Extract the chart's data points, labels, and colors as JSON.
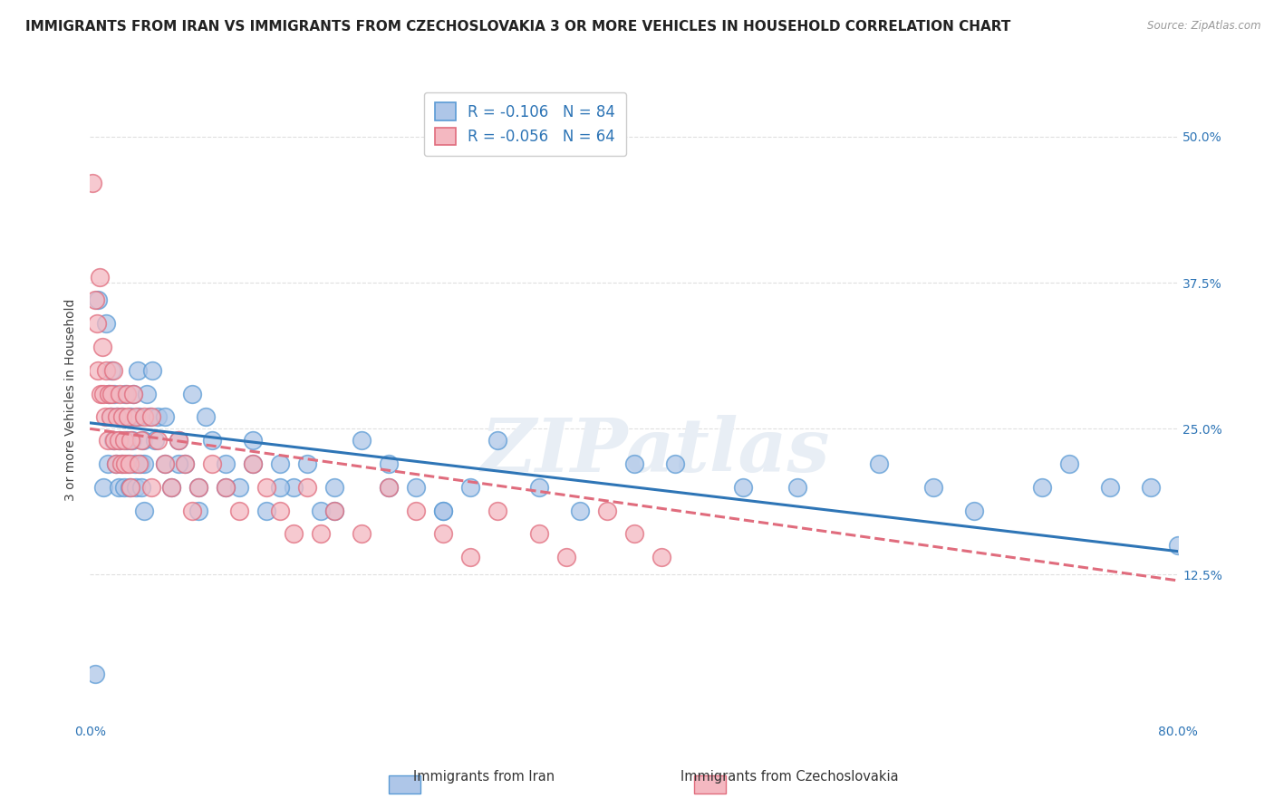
{
  "title": "IMMIGRANTS FROM IRAN VS IMMIGRANTS FROM CZECHOSLOVAKIA 3 OR MORE VEHICLES IN HOUSEHOLD CORRELATION CHART",
  "source": "Source: ZipAtlas.com",
  "ylabel": "3 or more Vehicles in Household",
  "xlim": [
    0.0,
    80.0
  ],
  "ylim": [
    0.0,
    55.0
  ],
  "yticks": [
    12.5,
    25.0,
    37.5,
    50.0
  ],
  "ytick_labels": [
    "12.5%",
    "25.0%",
    "37.5%",
    "50.0%"
  ],
  "series": [
    {
      "label": "Immigrants from Iran",
      "color_fill": "#aec6e8",
      "color_edge": "#5b9bd5",
      "R": -0.106,
      "N": 84,
      "line_color": "#2e75b6",
      "line_style": "solid",
      "trend_x0": 0.0,
      "trend_y0": 25.5,
      "trend_x1": 80.0,
      "trend_y1": 14.5,
      "x": [
        0.4,
        0.6,
        1.0,
        1.2,
        1.3,
        1.4,
        1.5,
        1.6,
        1.7,
        1.8,
        1.9,
        2.0,
        2.1,
        2.2,
        2.3,
        2.4,
        2.5,
        2.6,
        2.7,
        2.8,
        2.9,
        3.0,
        3.1,
        3.2,
        3.3,
        3.4,
        3.5,
        3.6,
        3.7,
        3.8,
        3.9,
        4.0,
        4.2,
        4.4,
        4.6,
        4.8,
        5.0,
        5.5,
        6.0,
        6.5,
        7.0,
        7.5,
        8.0,
        8.5,
        9.0,
        10.0,
        11.0,
        12.0,
        13.0,
        14.0,
        15.0,
        16.0,
        17.0,
        18.0,
        20.0,
        22.0,
        24.0,
        26.0,
        28.0,
        30.0,
        33.0,
        36.0,
        40.0,
        43.0,
        48.0,
        52.0,
        58.0,
        62.0,
        65.0,
        70.0,
        72.0,
        75.0,
        78.0,
        80.0,
        4.0,
        5.5,
        6.5,
        8.0,
        10.0,
        12.0,
        14.0,
        18.0,
        22.0,
        26.0
      ],
      "y": [
        4.0,
        36.0,
        20.0,
        34.0,
        22.0,
        28.0,
        26.0,
        30.0,
        24.0,
        28.0,
        22.0,
        26.0,
        20.0,
        24.0,
        26.0,
        22.0,
        20.0,
        28.0,
        24.0,
        22.0,
        20.0,
        26.0,
        24.0,
        28.0,
        22.0,
        20.0,
        30.0,
        26.0,
        22.0,
        20.0,
        24.0,
        22.0,
        28.0,
        26.0,
        30.0,
        24.0,
        26.0,
        22.0,
        20.0,
        24.0,
        22.0,
        28.0,
        20.0,
        26.0,
        24.0,
        22.0,
        20.0,
        24.0,
        18.0,
        22.0,
        20.0,
        22.0,
        18.0,
        20.0,
        24.0,
        22.0,
        20.0,
        18.0,
        20.0,
        24.0,
        20.0,
        18.0,
        22.0,
        22.0,
        20.0,
        20.0,
        22.0,
        20.0,
        18.0,
        20.0,
        22.0,
        20.0,
        20.0,
        15.0,
        18.0,
        26.0,
        22.0,
        18.0,
        20.0,
        22.0,
        20.0,
        18.0,
        20.0,
        18.0
      ]
    },
    {
      "label": "Immigrants from Czechoslovakia",
      "color_fill": "#f4b8c1",
      "color_edge": "#e06c7d",
      "R": -0.056,
      "N": 64,
      "line_color": "#e06c7d",
      "line_style": "dashed",
      "trend_x0": 0.0,
      "trend_y0": 25.0,
      "trend_x1": 80.0,
      "trend_y1": 12.0,
      "x": [
        0.2,
        0.4,
        0.5,
        0.6,
        0.7,
        0.8,
        0.9,
        1.0,
        1.1,
        1.2,
        1.3,
        1.4,
        1.5,
        1.6,
        1.7,
        1.8,
        1.9,
        2.0,
        2.1,
        2.2,
        2.3,
        2.4,
        2.5,
        2.6,
        2.7,
        2.8,
        2.9,
        3.0,
        3.2,
        3.4,
        3.6,
        3.8,
        4.0,
        4.5,
        5.0,
        5.5,
        6.0,
        6.5,
        7.0,
        7.5,
        8.0,
        9.0,
        10.0,
        11.0,
        12.0,
        13.0,
        14.0,
        15.0,
        16.0,
        17.0,
        18.0,
        20.0,
        22.0,
        24.0,
        26.0,
        28.0,
        30.0,
        33.0,
        35.0,
        38.0,
        40.0,
        42.0,
        3.0,
        4.5
      ],
      "y": [
        46.0,
        36.0,
        34.0,
        30.0,
        38.0,
        28.0,
        32.0,
        28.0,
        26.0,
        30.0,
        24.0,
        28.0,
        26.0,
        28.0,
        30.0,
        24.0,
        22.0,
        26.0,
        24.0,
        28.0,
        22.0,
        26.0,
        24.0,
        22.0,
        28.0,
        26.0,
        22.0,
        20.0,
        28.0,
        26.0,
        22.0,
        24.0,
        26.0,
        20.0,
        24.0,
        22.0,
        20.0,
        24.0,
        22.0,
        18.0,
        20.0,
        22.0,
        20.0,
        18.0,
        22.0,
        20.0,
        18.0,
        16.0,
        20.0,
        16.0,
        18.0,
        16.0,
        20.0,
        18.0,
        16.0,
        14.0,
        18.0,
        16.0,
        14.0,
        18.0,
        16.0,
        14.0,
        24.0,
        26.0
      ]
    }
  ],
  "watermark_text": "ZIPatlas",
  "background_color": "#ffffff",
  "grid_color": "#d8d8d8",
  "title_fontsize": 11,
  "axis_label_fontsize": 10,
  "tick_fontsize": 10,
  "legend_fontsize": 12
}
